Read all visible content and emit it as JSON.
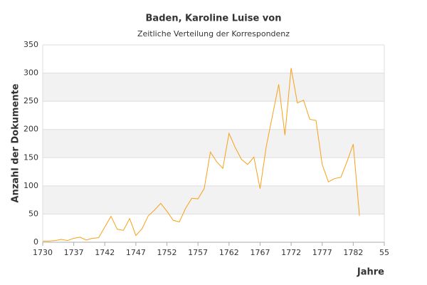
{
  "chart_data": {
    "type": "line",
    "title": "Baden, Karoline Luise von",
    "subtitle": "Zeitliche Verteilung der Korrespondenz",
    "y_label": "Anzahl der Dokumente",
    "x_label": "Jahre",
    "categories": [
      "1730",
      null,
      null,
      null,
      null,
      "1737",
      null,
      null,
      null,
      null,
      "1742",
      null,
      null,
      null,
      null,
      "1747",
      null,
      null,
      null,
      null,
      "1752",
      null,
      null,
      null,
      null,
      "1757",
      null,
      null,
      null,
      null,
      "1762",
      null,
      null,
      null,
      null,
      "1767",
      null,
      null,
      null,
      null,
      "1772",
      null,
      null,
      null,
      null,
      "1777",
      null,
      null,
      null,
      null,
      "1782",
      null,
      null,
      null,
      null,
      "55"
    ],
    "series": [
      {
        "name": "Dokumente",
        "color": "#f7a11a",
        "values": [
          2,
          2,
          3,
          5,
          3,
          7,
          9,
          4,
          7,
          8,
          27,
          46,
          23,
          21,
          42,
          12,
          24,
          47,
          57,
          69,
          55,
          39,
          36,
          60,
          78,
          77,
          95,
          160,
          143,
          131,
          193,
          168,
          147,
          138,
          151,
          95,
          170,
          225,
          280,
          190,
          309,
          247,
          252,
          218,
          216,
          138,
          107,
          113,
          115,
          143,
          174,
          47,
          null,
          null,
          null,
          null
        ]
      }
    ],
    "ylim": [
      0,
      350
    ],
    "yticks": [
      0,
      50,
      100,
      150,
      200,
      250,
      300,
      350
    ],
    "grid": true,
    "alternate_bands": true
  }
}
